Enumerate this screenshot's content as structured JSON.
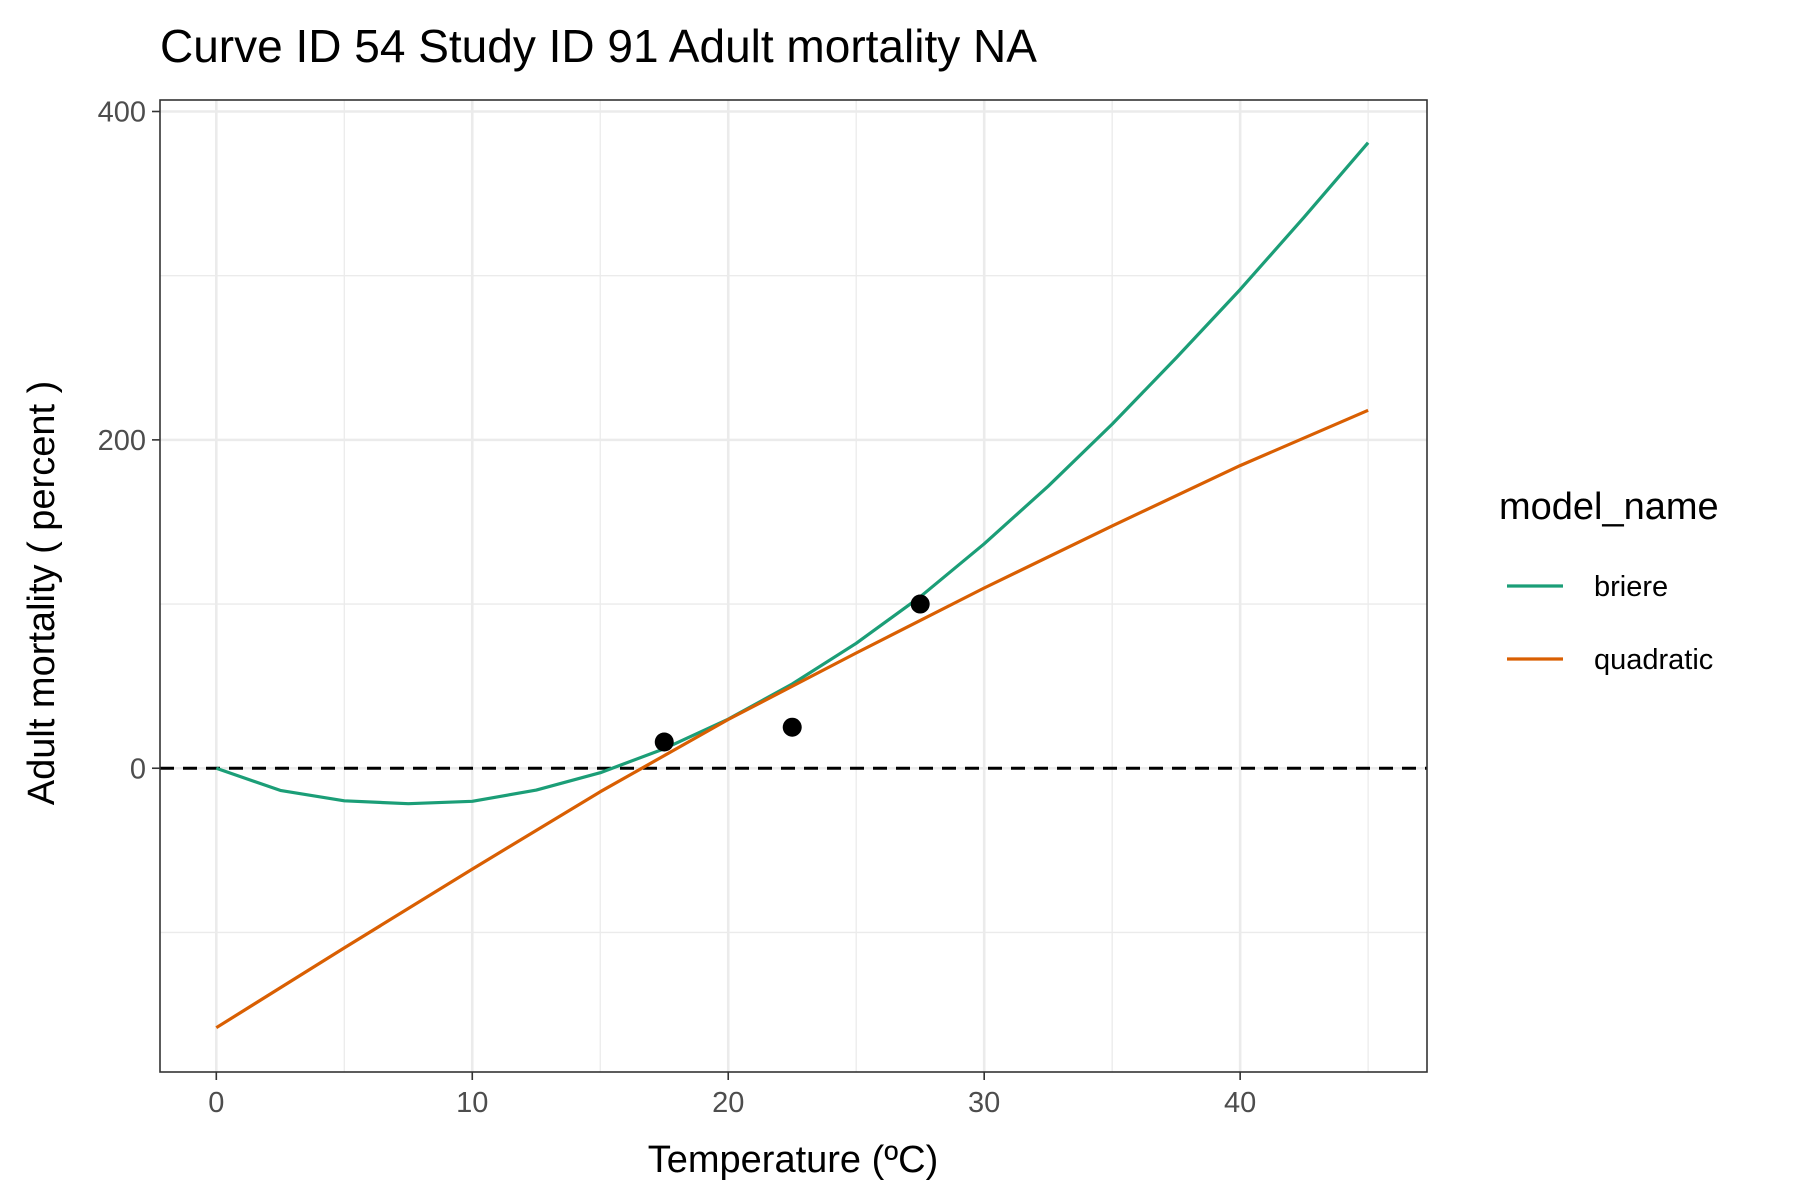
{
  "chart_data": {
    "type": "line",
    "title": "Curve ID 54 Study ID 91 Adult mortality NA",
    "xlabel": "Temperature (ºC)",
    "ylabel": "Adult mortality ( percent )",
    "xlim": [
      -2.2,
      47.3
    ],
    "ylim": [
      -185,
      407
    ],
    "x_ticks": [
      0,
      10,
      20,
      30,
      40
    ],
    "x_tick_labels": [
      "0",
      "10",
      "20",
      "30",
      "40"
    ],
    "x_minor_ticks": [
      5,
      15,
      25,
      35,
      45
    ],
    "y_ticks": [
      0,
      200,
      400
    ],
    "y_tick_labels": [
      "0",
      "200",
      "400"
    ],
    "y_minor_ticks": [
      -100,
      100,
      300
    ],
    "grid": true,
    "reference_line": {
      "y": 0,
      "style": "dashed",
      "color": "#000000"
    },
    "points": {
      "color": "#000000",
      "x": [
        17.5,
        22.5,
        27.5
      ],
      "y": [
        16,
        25,
        100
      ]
    },
    "legend": {
      "title": "model_name",
      "position": "right"
    },
    "series": [
      {
        "name": "briere",
        "color": "#1b9e77",
        "x": [
          0,
          2.5,
          5,
          7.5,
          10,
          12.5,
          15,
          17.5,
          20,
          22.5,
          25,
          27.5,
          30,
          32.5,
          35,
          37.5,
          40,
          42.5,
          45
        ],
        "y": [
          0,
          -13.5,
          -19.8,
          -21.6,
          -20.1,
          -13.3,
          -2.7,
          11.9,
          29.9,
          51.3,
          76.1,
          104.4,
          136.7,
          171.8,
          209.6,
          249.9,
          291.5,
          335.6,
          381
        ]
      },
      {
        "name": "quadratic",
        "color": "#d95f02",
        "x": [
          0,
          5,
          10,
          15,
          20,
          25,
          30,
          35,
          40,
          45
        ],
        "y": [
          -158,
          -109.4,
          -61.4,
          -14.3,
          29.7,
          70.2,
          109.8,
          147.6,
          184.3,
          218
        ]
      }
    ]
  }
}
